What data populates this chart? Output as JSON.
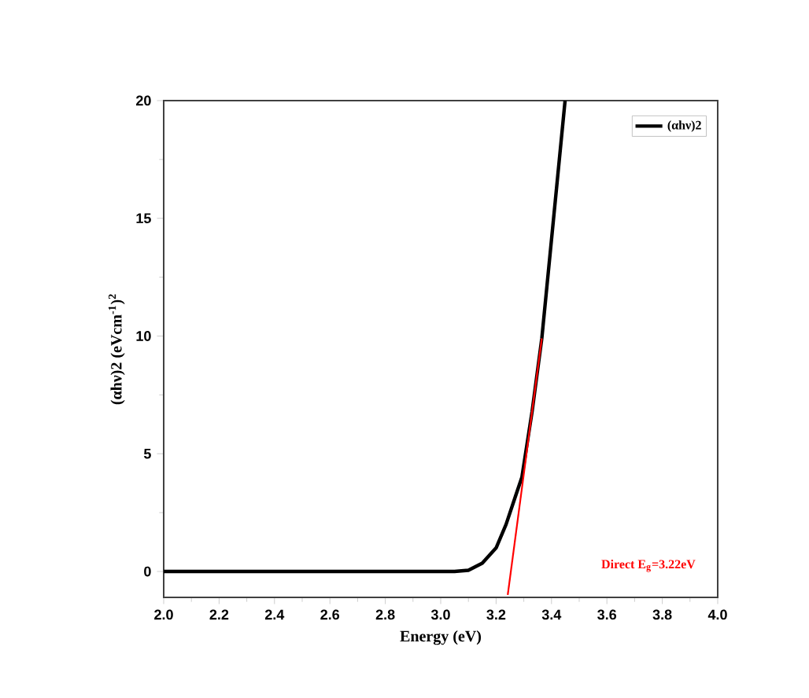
{
  "chart_data": {
    "type": "line",
    "xlabel": "Energy (eV)",
    "ylabel": "(αhν)2 (eVcm$^{-1}$)$^{2}$",
    "series": [
      {
        "name": "(αhν)2",
        "color": "#000000",
        "x": [
          2.0,
          2.5,
          3.0,
          3.05,
          3.1,
          3.15,
          3.2,
          3.236,
          3.27,
          3.293,
          3.33,
          3.365,
          3.42,
          3.449
        ],
        "values": [
          0,
          0,
          0,
          0,
          0.05,
          0.35,
          1.0,
          2.0,
          3.2,
          4.0,
          6.8,
          9.9,
          16.5,
          20
        ]
      },
      {
        "type": "line",
        "color": "#ff0000",
        "x": [
          3.242,
          3.365
        ],
        "values": [
          -1.0,
          9.9
        ]
      }
    ],
    "xlim": [
      2.0,
      4.0
    ],
    "ylim": [
      -1.1,
      20
    ],
    "xticks": [
      {
        "value": 2.0,
        "label": "2.0"
      },
      {
        "value": 2.2,
        "label": "2.2"
      },
      {
        "value": 2.4,
        "label": "2.4"
      },
      {
        "value": 2.6,
        "label": "2.6"
      },
      {
        "value": 2.8,
        "label": "2.8"
      },
      {
        "value": 3.0,
        "label": "3.0"
      },
      {
        "value": 3.2,
        "label": "3.2"
      },
      {
        "value": 3.4,
        "label": "3.4"
      },
      {
        "value": 3.6,
        "label": "3.6"
      },
      {
        "value": 3.8,
        "label": "3.8"
      },
      {
        "value": 4.0,
        "label": "4.0"
      }
    ],
    "yticks": [
      0,
      5,
      10,
      15,
      20
    ],
    "annotations": [
      "Direct E$_{g}$=3.22eV"
    ],
    "legend": "top right",
    "marker": "none",
    "line_style": "solid",
    "grid": false
  }
}
